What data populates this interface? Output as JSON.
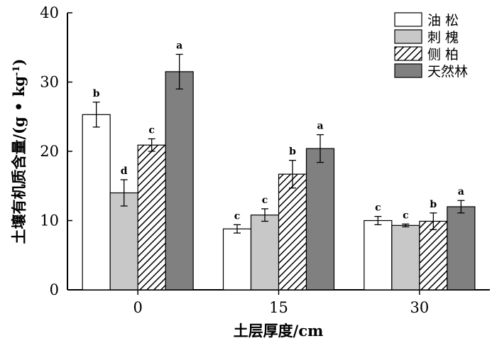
{
  "chart_data": {
    "type": "bar",
    "title": "",
    "xlabel": "土层厚度/cm",
    "ylabel_main": "土壤有机质含量/(g • kg",
    "ylabel_sup": "-1",
    "ylabel_close": ")",
    "categories": [
      "0",
      "15",
      "30"
    ],
    "ylim": [
      0,
      40
    ],
    "yticks": [
      "0",
      "10",
      "20",
      "30",
      "40"
    ],
    "legend_position": "top-right",
    "series": [
      {
        "name": "油 松",
        "fill": "#ffffff",
        "pattern": "none",
        "values": [
          25.3,
          8.8,
          10.0
        ],
        "errors": [
          1.8,
          0.6,
          0.6
        ],
        "labels": [
          "b",
          "c",
          "c"
        ]
      },
      {
        "name": "刺 槐",
        "fill": "#c8c8c8",
        "pattern": "none",
        "values": [
          14.0,
          10.8,
          9.3
        ],
        "errors": [
          1.9,
          0.9,
          0.2
        ],
        "labels": [
          "d",
          "c",
          "c"
        ]
      },
      {
        "name": "侧 柏",
        "fill": "#ffffff",
        "pattern": "diagonal-hatch",
        "values": [
          20.9,
          16.7,
          9.9
        ],
        "errors": [
          0.9,
          2.0,
          1.2
        ],
        "labels": [
          "c",
          "b",
          "b"
        ]
      },
      {
        "name": "天然林",
        "fill": "#808080",
        "pattern": "none",
        "values": [
          31.5,
          20.4,
          12.0
        ],
        "errors": [
          2.5,
          2.0,
          0.9
        ],
        "labels": [
          "a",
          "a",
          "a"
        ]
      }
    ]
  }
}
